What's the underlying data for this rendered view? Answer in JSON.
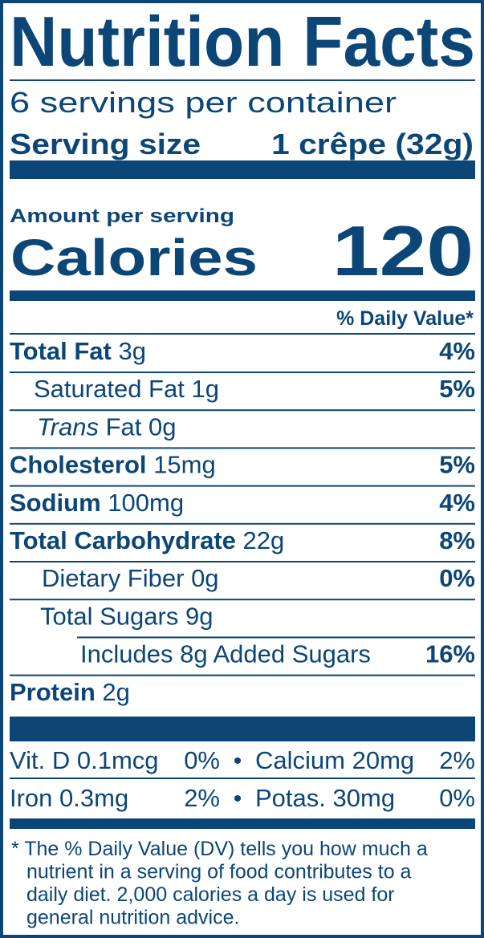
{
  "title": "Nutrition Facts",
  "servings": "6 servings per container",
  "serving_size": {
    "label": "Serving size",
    "value": "1 crêpe (32g)"
  },
  "amount_per_serving": "Amount per serving",
  "calories": {
    "label": "Calories",
    "value": "120"
  },
  "dv_header": "% Daily Value*",
  "nutrients": [
    {
      "name": "Total Fat",
      "amount": "3g",
      "dv": "4%"
    },
    {
      "name": "Saturated Fat",
      "amount": "1g",
      "dv": "5%"
    },
    {
      "name_italic": "Trans",
      "name": "Fat",
      "amount": "0g"
    },
    {
      "name": "Cholesterol",
      "amount": "15mg",
      "dv": "5%"
    },
    {
      "name": "Sodium",
      "amount": "100mg",
      "dv": "4%"
    },
    {
      "name": "Total Carbohydrate",
      "amount": "22g",
      "dv": "8%"
    },
    {
      "name": "Dietary Fiber",
      "amount": "0g",
      "dv": "0%"
    },
    {
      "name": "Total Sugars",
      "amount": "9g"
    },
    {
      "name": "Includes 8g Added Sugars",
      "dv": "16%"
    },
    {
      "name": "Protein",
      "amount": "2g"
    }
  ],
  "vitamins": [
    {
      "name": "Vit. D",
      "amount": "0.1mcg",
      "dv": "0%"
    },
    {
      "name": "Calcium",
      "amount": "20mg",
      "dv": "2%"
    },
    {
      "name": "Iron",
      "amount": "0.3mg",
      "dv": "2%"
    },
    {
      "name": "Potas.",
      "amount": "30mg",
      "dv": "0%"
    }
  ],
  "footnote": [
    "* The % Daily Value (DV) tells you how much a",
    "nutrient in a serving of food contributes to a",
    "daily diet. 2,000 calories a day is used for",
    "general nutrition advice."
  ]
}
